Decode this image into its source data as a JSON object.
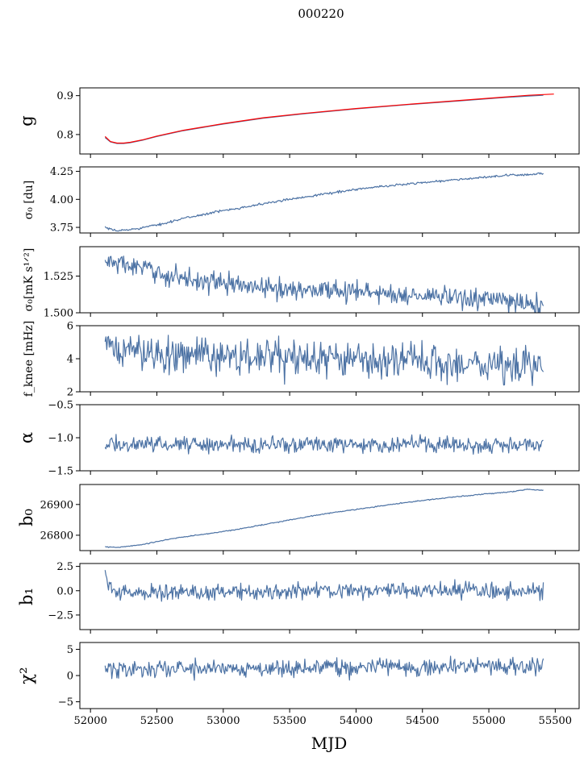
{
  "figure_title": "000220",
  "colors": {
    "series": "#4c72a4",
    "fit": "#ff0000"
  },
  "chart_data": [
    {
      "id": "g",
      "type": "line",
      "ylabel": "g",
      "ylabel_display": "g",
      "ylim": [
        0.75,
        0.92
      ],
      "yticks": [
        0.8,
        0.9
      ],
      "ytick_labels": [
        "0.8",
        "0.9"
      ],
      "xlim": [
        51920,
        55680
      ],
      "series": [
        {
          "name": "g",
          "color": "#4c72a4",
          "x": [
            52110,
            52150,
            52200,
            52250,
            52300,
            52400,
            52500,
            52700,
            53000,
            53300,
            53600,
            54000,
            54400,
            54800,
            55100,
            55300,
            55410
          ],
          "values": [
            0.792,
            0.781,
            0.777,
            0.777,
            0.779,
            0.786,
            0.795,
            0.81,
            0.827,
            0.842,
            0.853,
            0.866,
            0.877,
            0.887,
            0.895,
            0.899,
            0.901
          ]
        },
        {
          "name": "g fit",
          "color": "#ff0000",
          "x": [
            52110,
            52150,
            52200,
            52250,
            52300,
            52400,
            52500,
            52700,
            53000,
            53300,
            53600,
            54000,
            54400,
            54800,
            55100,
            55300,
            55490
          ],
          "values": [
            0.795,
            0.782,
            0.778,
            0.778,
            0.78,
            0.787,
            0.796,
            0.811,
            0.828,
            0.843,
            0.854,
            0.867,
            0.878,
            0.888,
            0.896,
            0.901,
            0.904
          ]
        }
      ]
    },
    {
      "id": "sigma0_du",
      "type": "line",
      "ylabel": "σ0 [du]",
      "ylabel_display": "σ₀ [du]",
      "ylim": [
        3.7,
        4.29
      ],
      "yticks": [
        3.75,
        4.0,
        4.25
      ],
      "ytick_labels": [
        "3.75",
        "4.00",
        "4.25"
      ],
      "xlim": [
        51920,
        55680
      ],
      "series": [
        {
          "name": "sigma0_du",
          "color": "#4c72a4",
          "noise": 0.005,
          "x": [
            52110,
            52150,
            52200,
            52300,
            52500,
            52700,
            53000,
            53300,
            53600,
            54000,
            54400,
            54800,
            55100,
            55410
          ],
          "values": [
            3.75,
            3.73,
            3.72,
            3.73,
            3.77,
            3.83,
            3.9,
            3.96,
            4.02,
            4.09,
            4.14,
            4.18,
            4.21,
            4.23
          ]
        }
      ]
    },
    {
      "id": "sigma0_mk",
      "type": "line",
      "ylabel": "σ0[mK s1/2]",
      "ylabel_display": "σ₀[mK s¹ᐟ²]",
      "ylim": [
        1.5,
        1.545
      ],
      "yticks": [
        1.5,
        1.525
      ],
      "ytick_labels": [
        "1.500",
        "1.525"
      ],
      "xlim": [
        51920,
        55680
      ],
      "series": [
        {
          "name": "sigma0_mk",
          "color": "#4c72a4",
          "noise": 0.0035,
          "x": [
            52110,
            52300,
            52600,
            53000,
            53400,
            53800,
            54200,
            54600,
            55000,
            55410
          ],
          "values": [
            1.535,
            1.532,
            1.525,
            1.52,
            1.516,
            1.516,
            1.513,
            1.511,
            1.509,
            1.505
          ]
        }
      ]
    },
    {
      "id": "fknee",
      "type": "line",
      "ylabel": "fknee [mHz]",
      "ylabel_display": "f_knee [mHz]",
      "ylim": [
        2,
        6
      ],
      "yticks": [
        2,
        4,
        6
      ],
      "ytick_labels": [
        "2",
        "4",
        "6"
      ],
      "xlim": [
        51920,
        55680
      ],
      "series": [
        {
          "name": "fknee",
          "color": "#4c72a4",
          "noise": 0.55,
          "x": [
            52110,
            52400,
            52800,
            53200,
            53600,
            54000,
            54400,
            54800,
            55200,
            55410
          ],
          "values": [
            4.6,
            4.4,
            4.2,
            4.1,
            4.0,
            3.9,
            3.8,
            3.7,
            3.6,
            3.5
          ]
        }
      ]
    },
    {
      "id": "alpha",
      "type": "line",
      "ylabel": "α",
      "ylabel_display": "α",
      "ylim": [
        -1.5,
        -0.5
      ],
      "yticks": [
        -1.5,
        -1.0,
        -0.5
      ],
      "ytick_labels": [
        "−1.5",
        "−1.0",
        "−0.5"
      ],
      "xlim": [
        51920,
        55680
      ],
      "series": [
        {
          "name": "alpha",
          "color": "#4c72a4",
          "noise": 0.06,
          "x": [
            52110,
            53000,
            54000,
            55000,
            55410
          ],
          "values": [
            -1.1,
            -1.1,
            -1.1,
            -1.1,
            -1.1
          ]
        }
      ]
    },
    {
      "id": "b0",
      "type": "line",
      "ylabel": "b0",
      "ylabel_display": "b₀",
      "ylim": [
        26750,
        26965
      ],
      "yticks": [
        26800,
        26900
      ],
      "ytick_labels": [
        "26800",
        "26900"
      ],
      "xlim": [
        51920,
        55680
      ],
      "series": [
        {
          "name": "b0",
          "color": "#4c72a4",
          "noise": 0.8,
          "x": [
            52110,
            52200,
            52400,
            52600,
            52800,
            53000,
            53200,
            53400,
            53600,
            53800,
            54000,
            54200,
            54400,
            54600,
            54800,
            55000,
            55200,
            55300,
            55410
          ],
          "values": [
            26762,
            26760,
            26770,
            26788,
            26800,
            26812,
            26826,
            26842,
            26858,
            26872,
            26884,
            26896,
            26908,
            26918,
            26927,
            26935,
            26943,
            26950,
            26945
          ]
        }
      ]
    },
    {
      "id": "b1",
      "type": "line",
      "ylabel": "b1",
      "ylabel_display": "b₁",
      "ylim": [
        -4.0,
        2.8
      ],
      "yticks": [
        -2.5,
        0.0,
        2.5
      ],
      "ytick_labels": [
        "−2.5",
        "0.0",
        "2.5"
      ],
      "xlim": [
        51920,
        55680
      ],
      "series": [
        {
          "name": "b1",
          "color": "#4c72a4",
          "noise": 0.4,
          "x": [
            52110,
            52140,
            52200,
            53000,
            54000,
            55000,
            55410
          ],
          "values": [
            2.0,
            0.3,
            -0.2,
            -0.1,
            0.0,
            0.0,
            0.0
          ]
        }
      ]
    },
    {
      "id": "chi2",
      "type": "line",
      "ylabel": "χ2",
      "ylabel_display": "χ²",
      "ylim": [
        -6.3,
        6.3
      ],
      "yticks": [
        -5,
        0,
        5
      ],
      "ytick_labels": [
        "−5",
        "0",
        "5"
      ],
      "xlim": [
        51920,
        55680
      ],
      "xticks": [
        52000,
        52500,
        53000,
        53500,
        54000,
        54500,
        55000,
        55500
      ],
      "xtick_labels": [
        "52000",
        "52500",
        "53000",
        "53500",
        "54000",
        "54500",
        "55000",
        "55500"
      ],
      "xlabel": "MJD",
      "series": [
        {
          "name": "chi2",
          "color": "#4c72a4",
          "noise": 0.85,
          "x": [
            52110,
            53000,
            54000,
            55000,
            55410
          ],
          "values": [
            1.2,
            1.4,
            1.6,
            1.7,
            1.8
          ]
        }
      ]
    }
  ]
}
